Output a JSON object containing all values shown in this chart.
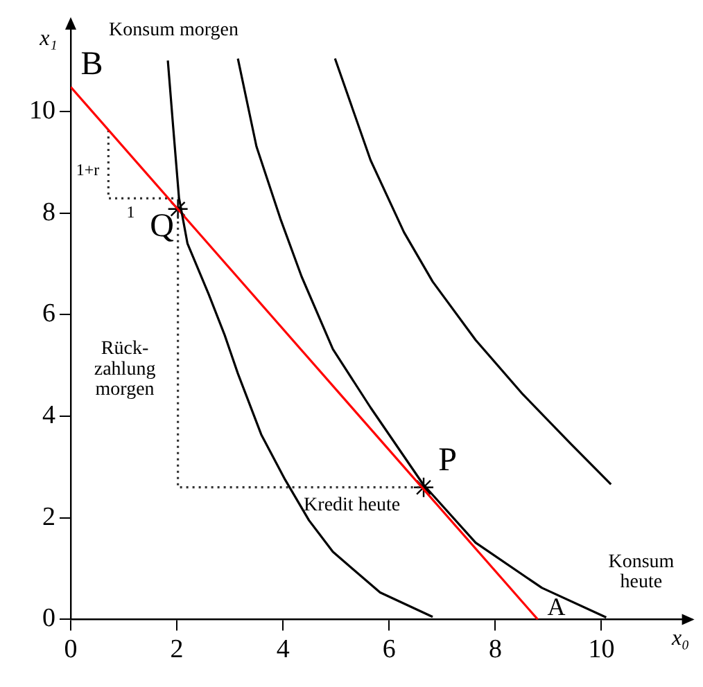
{
  "chart_data": {
    "type": "line",
    "xlabel": "x₀",
    "ylabel": "x₁",
    "xlim": [
      0,
      11.7
    ],
    "ylim": [
      0,
      11.8
    ],
    "xticks": [
      0,
      2,
      4,
      6,
      8,
      10
    ],
    "yticks": [
      0,
      2,
      4,
      6,
      8,
      10
    ],
    "grid": false,
    "legend": false,
    "series": [
      {
        "color": "#000000",
        "line_style": "solid",
        "marker": "none",
        "x": [
          1.83,
          1.93,
          2.04,
          2.2,
          2.6,
          2.9,
          3.15,
          3.59,
          4.04,
          4.49,
          4.94,
          5.83,
          6.82
        ],
        "values": [
          11.0,
          9.7,
          8.3,
          7.4,
          6.4,
          5.6,
          4.84,
          3.64,
          2.75,
          1.95,
          1.33,
          0.53,
          0.05
        ]
      },
      {
        "color": "#000000",
        "line_style": "solid",
        "marker": "none",
        "x": [
          3.15,
          3.5,
          3.95,
          4.35,
          4.94,
          5.65,
          6.64,
          7.63,
          8.88,
          10.09
        ],
        "values": [
          11.04,
          9.31,
          7.89,
          6.75,
          5.32,
          4.17,
          2.66,
          1.51,
          0.62,
          0.04
        ]
      },
      {
        "color": "#000000",
        "line_style": "solid",
        "marker": "none",
        "x": [
          4.98,
          5.65,
          6.28,
          6.82,
          7.63,
          8.52,
          9.42,
          10.18
        ],
        "values": [
          11.04,
          9.04,
          7.62,
          6.65,
          5.5,
          4.43,
          3.46,
          2.66
        ]
      },
      {
        "color": "#ff0000",
        "line_style": "solid",
        "marker": "none",
        "x": [
          0,
          8.8
        ],
        "values": [
          10.48,
          0
        ]
      },
      {
        "color": "#333333",
        "line_style": "dotted",
        "marker": "none",
        "x": [
          0.71,
          0.71,
          2.02
        ],
        "values": [
          9.63,
          8.29,
          8.29
        ]
      },
      {
        "color": "#333333",
        "line_style": "dotted",
        "marker": "none",
        "x": [
          2.02,
          2.02,
          6.65
        ],
        "values": [
          8.08,
          2.6,
          2.6
        ]
      },
      {
        "type": "scatter",
        "color": "#000000",
        "marker": "cross",
        "x": [
          2.02,
          6.65
        ],
        "values": [
          8.08,
          2.6
        ]
      }
    ],
    "annotations": [
      "Konsum morgen",
      "Konsum\nheute",
      "B",
      "A",
      "Q",
      "P",
      "1+r",
      "1",
      "Rück-\nzahlung\nmorgen",
      "Kredit heute"
    ]
  }
}
